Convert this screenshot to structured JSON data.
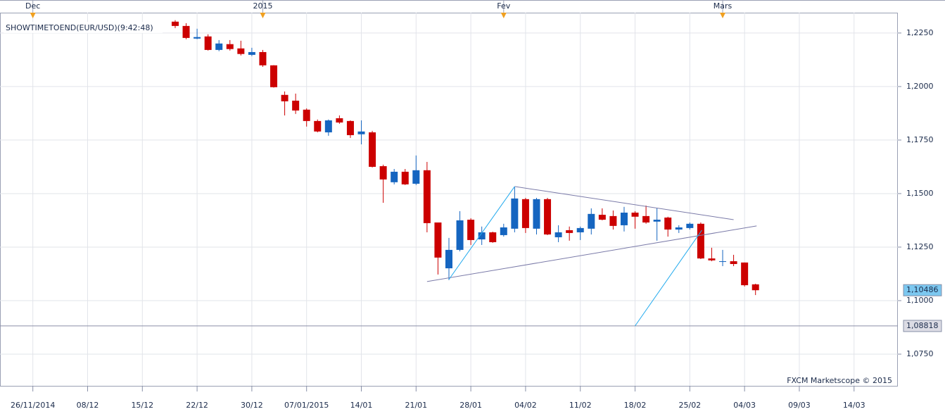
{
  "chart_data": {
    "type": "candlestick",
    "label": "SHOWTIMETOEND(EUR/USD)(9:42:48)",
    "credit": "FXCM Marketscope © 2015",
    "up_color": "#1565c0",
    "down_color": "#cc0000",
    "grid": true,
    "x": [
      0,
      1,
      2,
      3,
      4,
      5,
      6,
      7,
      8,
      9,
      10,
      11,
      12,
      13,
      14,
      15,
      16,
      17,
      18,
      19,
      20,
      21,
      22,
      23,
      24,
      25,
      26,
      27,
      28,
      29,
      30,
      31,
      32,
      33,
      34,
      35,
      36,
      37,
      38,
      39,
      40,
      41,
      42,
      43,
      44,
      45,
      46,
      47,
      48,
      49,
      50,
      51,
      52,
      53
    ],
    "open": [
      1.2303,
      1.2283,
      1.2224,
      1.2234,
      1.2171,
      1.2198,
      1.2178,
      1.2148,
      1.2161,
      1.2099,
      1.1961,
      1.1934,
      1.1892,
      1.1839,
      1.1786,
      1.1852,
      1.1839,
      1.1777,
      1.1786,
      1.1628,
      1.1553,
      1.1602,
      1.1546,
      1.1609,
      1.1365,
      1.1151,
      1.1237,
      1.1378,
      1.1286,
      1.1319,
      1.1306,
      1.1336,
      1.1474,
      1.1336,
      1.1474,
      1.1296,
      1.1329,
      1.1319,
      1.1336,
      1.1401,
      1.1395,
      1.1352,
      1.1411,
      1.1395,
      1.1369,
      1.1388,
      1.1332,
      1.1339,
      1.1359,
      1.1197,
      1.1181,
      1.1184,
      1.1178,
      1.1076
    ],
    "high": [
      1.231,
      1.2296,
      1.227,
      1.2244,
      1.2217,
      1.2217,
      1.2214,
      1.2181,
      1.2171,
      1.21,
      1.1977,
      1.1967,
      1.1898,
      1.1846,
      1.1846,
      1.1865,
      1.1842,
      1.1842,
      1.1793,
      1.1635,
      1.1615,
      1.1615,
      1.1678,
      1.1648,
      1.1365,
      1.1293,
      1.1418,
      1.1385,
      1.1346,
      1.1322,
      1.1359,
      1.153,
      1.148,
      1.148,
      1.148,
      1.1352,
      1.1346,
      1.1346,
      1.1431,
      1.1431,
      1.1421,
      1.1438,
      1.1418,
      1.1444,
      1.1431,
      1.1392,
      1.1352,
      1.1365,
      1.1365,
      1.1247,
      1.1237,
      1.1214,
      1.1178,
      1.1079
    ],
    "low": [
      1.2273,
      1.2221,
      1.2221,
      1.2168,
      1.2165,
      1.2168,
      1.2145,
      1.2142,
      1.2092,
      1.1995,
      1.1865,
      1.1872,
      1.1813,
      1.1786,
      1.177,
      1.1826,
      1.176,
      1.173,
      1.1622,
      1.1457,
      1.1543,
      1.154,
      1.154,
      1.1319,
      1.1122,
      1.1096,
      1.123,
      1.126,
      1.126,
      1.127,
      1.1299,
      1.1319,
      1.1316,
      1.1309,
      1.1306,
      1.1273,
      1.128,
      1.1283,
      1.1309,
      1.1375,
      1.1332,
      1.1323,
      1.1336,
      1.1359,
      1.128,
      1.1299,
      1.1316,
      1.1332,
      1.1194,
      1.1184,
      1.1161,
      1.1161,
      1.1066,
      1.1026
    ],
    "close": [
      1.2283,
      1.2227,
      1.2231,
      1.2171,
      1.2201,
      1.2175,
      1.2152,
      1.2161,
      1.2099,
      1.1997,
      1.1931,
      1.1888,
      1.1839,
      1.179,
      1.1842,
      1.1832,
      1.1773,
      1.179,
      1.1625,
      1.1566,
      1.1602,
      1.1543,
      1.1609,
      1.1362,
      1.1201,
      1.1237,
      1.1375,
      1.1283,
      1.1319,
      1.1273,
      1.1342,
      1.1477,
      1.1339,
      1.1474,
      1.1309,
      1.1319,
      1.1316,
      1.1339,
      1.1405,
      1.1378,
      1.1349,
      1.1411,
      1.1392,
      1.1365,
      1.1378,
      1.1332,
      1.1342,
      1.1359,
      1.1197,
      1.1188,
      1.1184,
      1.1171,
      1.1072,
      1.10486
    ],
    "xlim": [
      -16,
      66
    ],
    "xticks": [
      {
        "value": -13,
        "label": "26/11/2014"
      },
      {
        "value": -8,
        "label": "08/12"
      },
      {
        "value": -3,
        "label": "15/12"
      },
      {
        "value": 2,
        "label": "22/12"
      },
      {
        "value": 7,
        "label": "30/12"
      },
      {
        "value": 12,
        "label": "07/01/2015"
      },
      {
        "value": 17,
        "label": "14/01"
      },
      {
        "value": 22,
        "label": "21/01"
      },
      {
        "value": 27,
        "label": "28/01"
      },
      {
        "value": 32,
        "label": "04/02"
      },
      {
        "value": 37,
        "label": "11/02"
      },
      {
        "value": 42,
        "label": "18/02"
      },
      {
        "value": 47,
        "label": "25/02"
      },
      {
        "value": 52,
        "label": "04/03"
      },
      {
        "value": 57,
        "label": "09/03"
      },
      {
        "value": 62,
        "label": "14/03"
      }
    ],
    "top_markers": [
      {
        "value": -13,
        "label": "Dec"
      },
      {
        "value": 8,
        "label": "2015"
      },
      {
        "value": 30,
        "label": "Fev"
      },
      {
        "value": 50,
        "label": "Mars"
      }
    ],
    "ylim": [
      1.0602,
      1.2345
    ],
    "yticks": [
      {
        "value": 1.075,
        "label": "1,0750"
      },
      {
        "value": 1.1,
        "label": "1,1000"
      },
      {
        "value": 1.125,
        "label": "1,1250"
      },
      {
        "value": 1.15,
        "label": "1,1500"
      },
      {
        "value": 1.175,
        "label": "1,1750"
      },
      {
        "value": 1.2,
        "label": "1,2000"
      },
      {
        "value": 1.225,
        "label": "1,2250"
      }
    ],
    "price_lines": [
      {
        "value": 1.10486,
        "label": "1,10486",
        "color": "#7cc8f0",
        "show_line": false
      },
      {
        "value": 1.08818,
        "label": "1,08818",
        "color": "#dcdce4",
        "show_line": true
      }
    ],
    "trendlines": [
      {
        "color": "#7a7aa8",
        "points": [
          [
            23,
            1.1089
          ],
          [
            53.1,
            1.1349
          ]
        ]
      },
      {
        "color": "#7a7aa8",
        "points": [
          [
            31,
            1.1533
          ],
          [
            51,
            1.1378
          ]
        ]
      },
      {
        "color": "#22aaee",
        "points": [
          [
            25,
            1.1099
          ],
          [
            31,
            1.1533
          ]
        ]
      },
      {
        "color": "#22aaee",
        "points": [
          [
            42,
            1.0882
          ],
          [
            48.1,
            1.1329
          ]
        ]
      }
    ]
  }
}
